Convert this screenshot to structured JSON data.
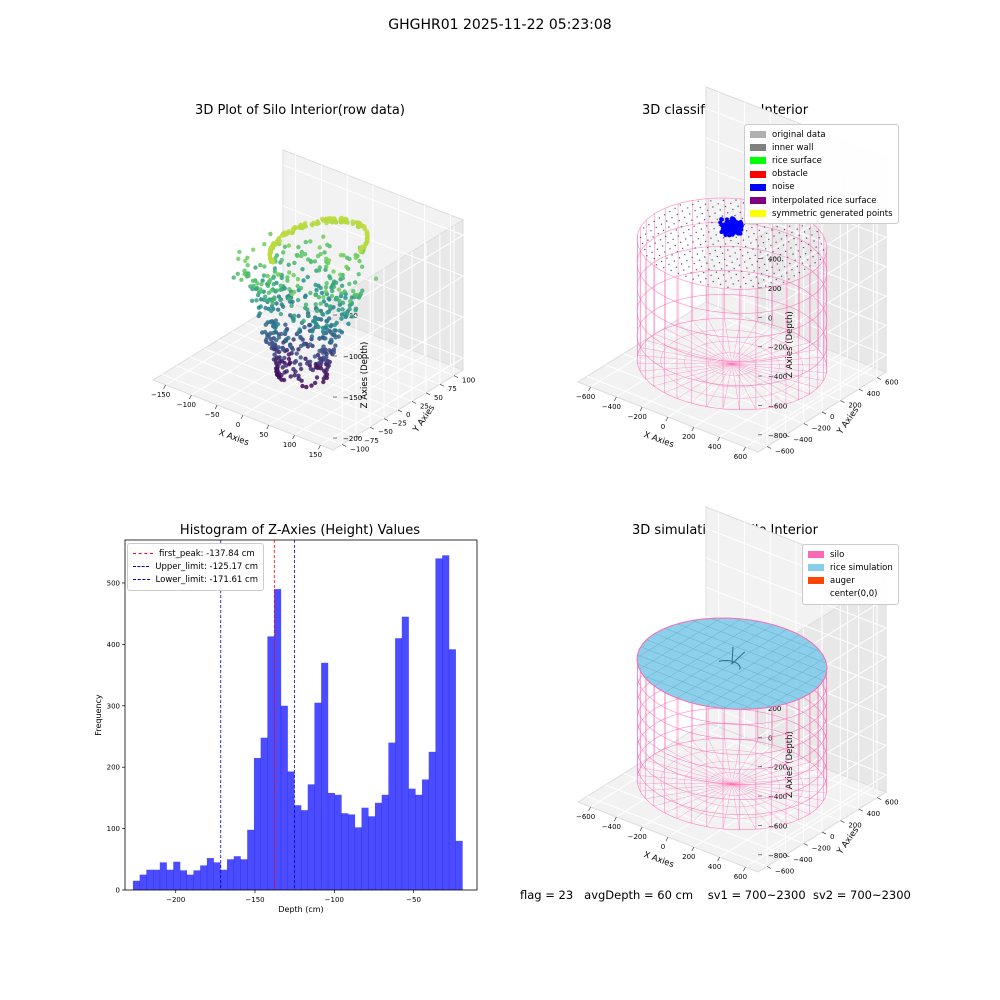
{
  "suptitle": "GHGHR01 2025-11-22 05:23:08",
  "colors": {
    "silo": "#ff69b4",
    "rice_sim": "#87ceeb",
    "auger": "#ff4500",
    "noise": "#0000ff",
    "hist": "#0000ff",
    "first_peak": "#ff0000",
    "limits": "#0000cc",
    "pane": "#f2f2f2"
  },
  "chart_data": [
    {
      "type": "scatter",
      "projection": "3d",
      "title": "3D Plot of Silo Interior(row data)",
      "xlabel": "X Axies",
      "ylabel": "Y Axies",
      "zlabel": "Z Axies (Depth)",
      "xlim": [
        -170,
        170
      ],
      "ylim": [
        -105,
        105
      ],
      "zlim": [
        -240,
        -10
      ],
      "x_ticks": [
        "−150",
        "−100",
        "−50",
        "0",
        "50",
        "100",
        "150"
      ],
      "y_ticks": [
        "−100",
        "−75",
        "−50",
        "−25",
        "0",
        "25",
        "50",
        "75",
        "100"
      ],
      "z_ticks": [
        "−50",
        "−100",
        "−150",
        "−200"
      ],
      "colormap": "viridis",
      "grid": true
    },
    {
      "type": "scatter",
      "projection": "3d",
      "title": "3D classify of Silo Interior",
      "xlabel": "X Axies",
      "ylabel": "Y Axies",
      "zlabel": "Z Axies (Depth)",
      "x_ticks": [
        "−600",
        "−400",
        "−200",
        "0",
        "200",
        "400",
        "600"
      ],
      "y_ticks": [
        "−600",
        "−400",
        "−200",
        "0",
        "200",
        "400",
        "600"
      ],
      "z_ticks": [
        "400",
        "200",
        "0",
        "−200",
        "−400",
        "−600",
        "−800"
      ],
      "legend": [
        {
          "label": "original data",
          "color": "#b0b0b0"
        },
        {
          "label": "inner wall",
          "color": "#808080"
        },
        {
          "label": "rice surface",
          "color": "#00ff00"
        },
        {
          "label": "obstacle",
          "color": "#ff0000"
        },
        {
          "label": "noise",
          "color": "#0000ff"
        },
        {
          "label": "interpolated rice surface",
          "color": "#800080"
        },
        {
          "label": "symmetric generated points",
          "color": "#ffff00"
        }
      ],
      "legend_position": "top-right",
      "grid": true
    },
    {
      "type": "bar",
      "title": "Histogram of Z-Axies (Height) Values",
      "xlabel": "Depth (cm)",
      "ylabel": "Frequency",
      "xlim": [
        -232,
        -10
      ],
      "ylim": [
        0,
        570
      ],
      "x_ticks": [
        -200,
        -150,
        -100,
        -50
      ],
      "y_ticks": [
        0,
        100,
        200,
        300,
        400,
        500
      ],
      "bin_start": -227,
      "bin_width": 4.24,
      "values": [
        15,
        25,
        33,
        33,
        45,
        33,
        46,
        32,
        25,
        32,
        40,
        52,
        45,
        33,
        50,
        55,
        50,
        98,
        215,
        248,
        413,
        490,
        300,
        193,
        138,
        130,
        172,
        305,
        370,
        158,
        155,
        125,
        123,
        102,
        134,
        120,
        142,
        155,
        240,
        410,
        445,
        165,
        155,
        180,
        225,
        540,
        545,
        392,
        80
      ],
      "reference_lines": [
        {
          "label": "first_peak: -137.84 cm",
          "x": -137.84,
          "color": "#ff0000"
        },
        {
          "label": "Upper_limit: -125.17 cm",
          "x": -125.17,
          "color": "#0000cc"
        },
        {
          "label": "Lower_limit: -171.61 cm",
          "x": -171.61,
          "color": "#0000cc"
        }
      ],
      "legend_position": "top-left"
    },
    {
      "type": "scatter",
      "projection": "3d",
      "title": "3D simulation of Silo Interior",
      "xlabel": "X Axies",
      "ylabel": "Y Axies",
      "zlabel": "Z Axies (Depth)",
      "x_ticks": [
        "−600",
        "−400",
        "−200",
        "0",
        "200",
        "400",
        "600"
      ],
      "y_ticks": [
        "−600",
        "−400",
        "−200",
        "0",
        "200",
        "400",
        "600"
      ],
      "z_ticks": [
        "400",
        "200",
        "0",
        "−200",
        "−400",
        "−600",
        "−800"
      ],
      "legend": [
        {
          "label": "silo",
          "color": "#ff69b4"
        },
        {
          "label": "rice simulation",
          "color": "#87ceeb"
        },
        {
          "label": "auger",
          "color": "#ff4500"
        },
        {
          "label": "center(0,0)",
          "color": "#ffffff"
        }
      ],
      "legend_position": "top-right",
      "grid": true
    }
  ],
  "footer": {
    "flag": "flag = 23",
    "avg_depth": "avgDepth = 60 cm",
    "sv1": "sv1 = 700~2300",
    "sv2": "sv2 = 700~2300"
  }
}
